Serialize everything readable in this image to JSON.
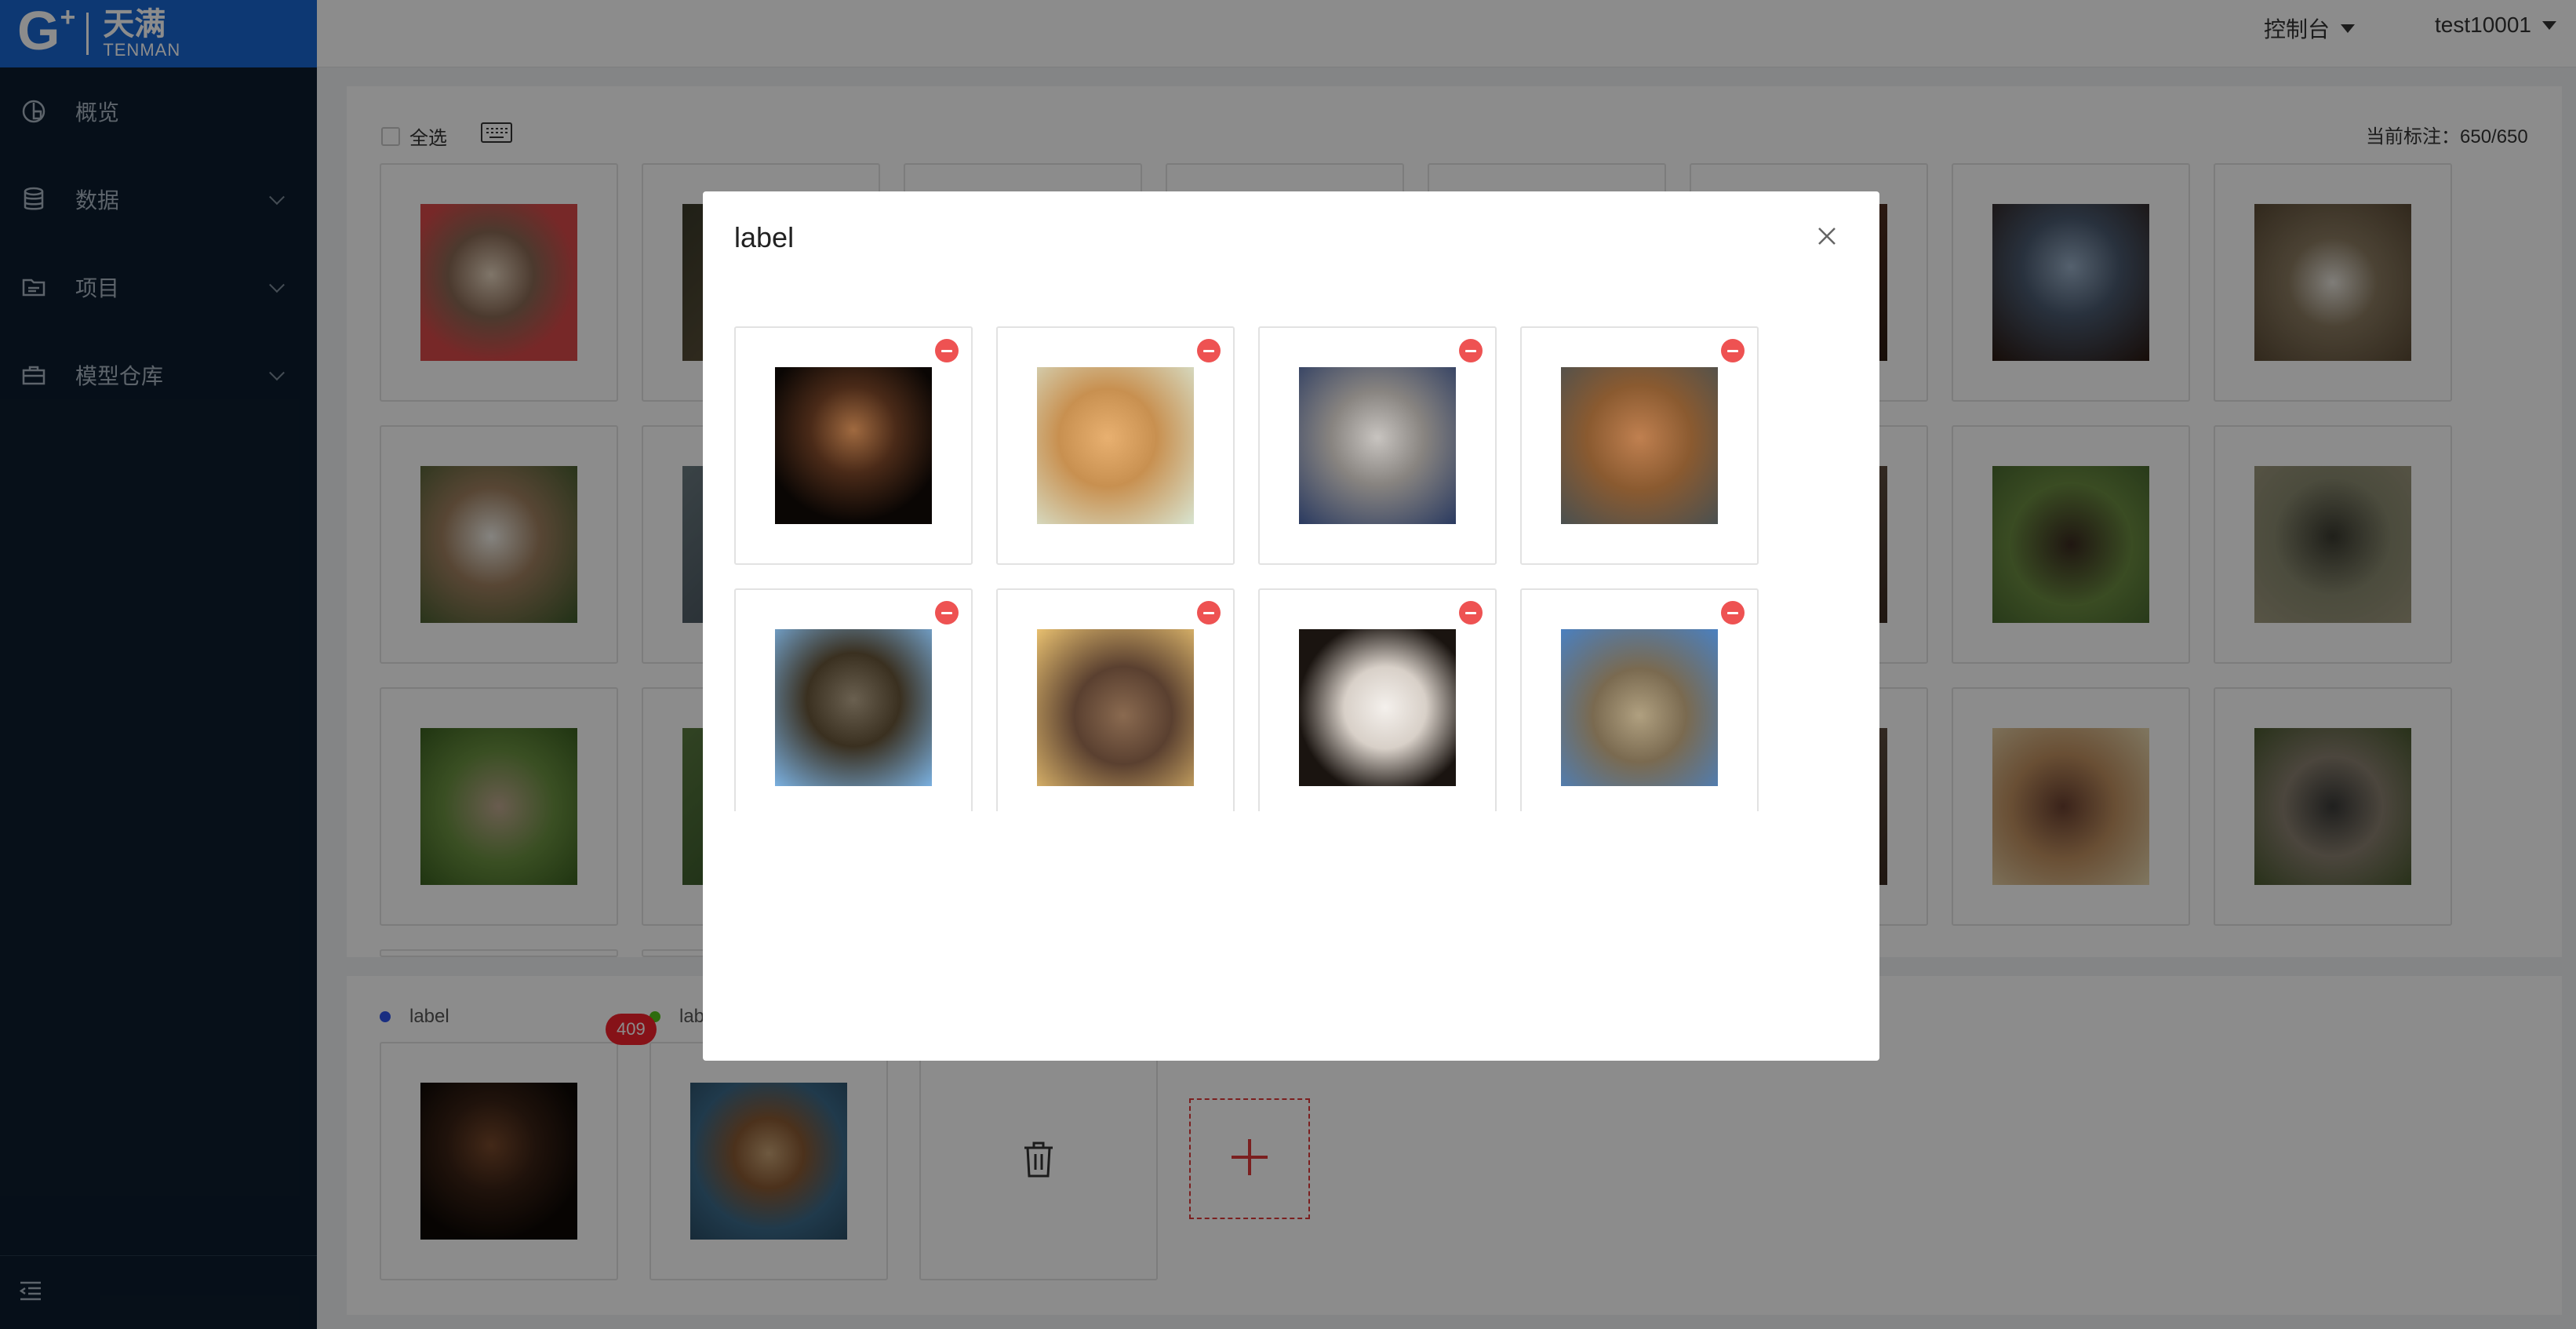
{
  "brand": {
    "mark": "G",
    "plus": "+",
    "name_cn": "天满",
    "name_en": "TENMAN"
  },
  "sidebar": {
    "items": [
      {
        "label": "概览",
        "icon": "dashboard-icon"
      },
      {
        "label": "数据",
        "icon": "database-icon"
      },
      {
        "label": "项目",
        "icon": "folder-icon"
      },
      {
        "label": "模型仓库",
        "icon": "briefcase-icon"
      }
    ],
    "footer_icon": "collapse-menu-icon"
  },
  "header": {
    "console": "控制台",
    "user": "test10001"
  },
  "toolbar": {
    "select_all": "全选",
    "counter": "当前标注：650/650"
  },
  "labels": [
    {
      "name": "label",
      "color": "#2f54eb"
    },
    {
      "name": "lab",
      "color": "#52c41a"
    }
  ],
  "badge": "409",
  "modal": {
    "title": "label"
  },
  "colors": {
    "sidebar": "#0c1d2e",
    "brand": "#1967d2",
    "danger": "#ee5252"
  }
}
